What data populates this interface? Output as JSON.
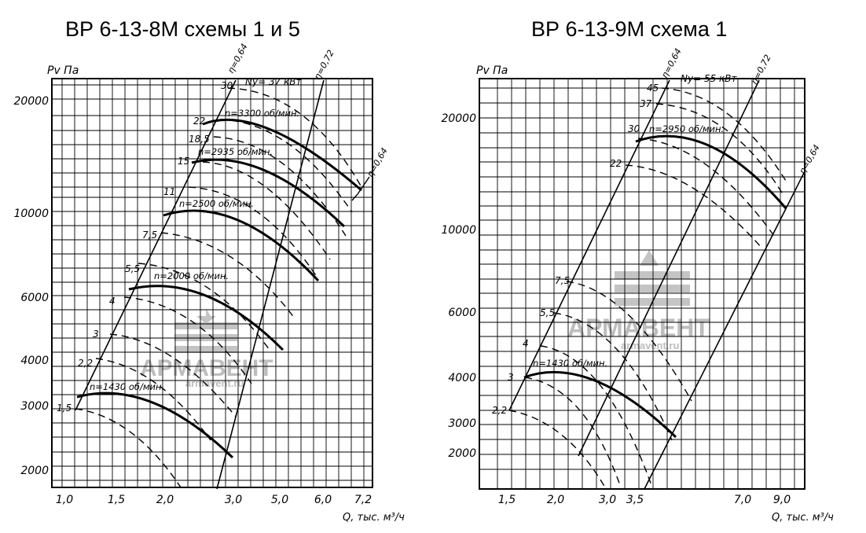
{
  "watermark": {
    "brand": "АРМАВЕНТ",
    "url": "armavent.ru"
  },
  "chart_data": [
    {
      "type": "line",
      "title": "ВР 6-13-8М  схемы 1 и 5",
      "ylabel": "Pv Па",
      "xlabel": "Q, тыс. м³/ч",
      "x_ticks": [
        "1,0",
        "1,5",
        "2,0",
        "3,0",
        "5,0",
        "6,0",
        "7,2"
      ],
      "y_ticks": [
        "2000",
        "3000",
        "4000",
        "6000",
        "10000",
        "20000"
      ],
      "efficiency_labels": [
        "η=0,64",
        "η=0,72",
        "η=0,64"
      ],
      "power_title": "Nу= 37 кВт",
      "power_labels": [
        "30",
        "22",
        "18,5",
        "15",
        "11",
        "7,5",
        "5,5",
        "4",
        "3",
        "2,2",
        "1,5"
      ],
      "series": [
        {
          "name": "n=3300 об/мин."
        },
        {
          "name": "n=2935 об/мин."
        },
        {
          "name": "n=2500 об/мин."
        },
        {
          "name": "n=2000 об/мин."
        },
        {
          "name": "n=1430 об/мин."
        }
      ]
    },
    {
      "type": "line",
      "title": "ВР 6-13-9М  схема 1",
      "ylabel": "Pv Па",
      "xlabel": "Q, тыс. м³/ч",
      "x_ticks": [
        "1,5",
        "2,0",
        "3,0",
        "3,5",
        "7,0",
        "9,0"
      ],
      "y_ticks": [
        "2000",
        "3000",
        "4000",
        "6000",
        "10000",
        "20000"
      ],
      "efficiency_labels": [
        "η=0,64",
        "η=0,72",
        "η=0,64"
      ],
      "power_title": "Nу= 55 кВт",
      "power_labels": [
        "45",
        "37",
        "30",
        "22",
        "7,5",
        "5,5",
        "4",
        "3",
        "2,2"
      ],
      "series": [
        {
          "name": "n=2950 об/мин."
        },
        {
          "name": "n=1430 об/мин."
        }
      ]
    }
  ]
}
